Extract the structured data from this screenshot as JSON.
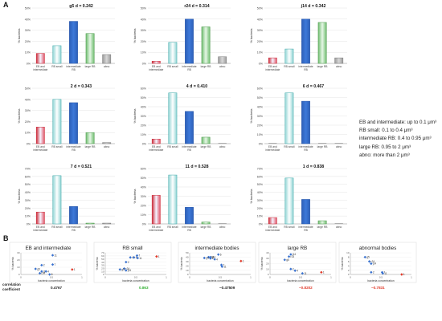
{
  "figure": {
    "panel_a_label": "A",
    "panel_b_label": "B",
    "legend_lines": [
      "EB and intermediate: up to 0.1 μm³",
      "RB small: 0.1 to 0.4 μm³",
      "intermediate RB: 0.4 to 0.95 μm³",
      "large RB: 0.95 to 2 μm³",
      "abno: more than 2 μm³"
    ],
    "correlation_label_1": "correlation",
    "correlation_label_2": "coefficient"
  },
  "colors": {
    "eb_fill": "#e05468",
    "eb_edge": "#cc2a38",
    "rbsmall_fill": "#cfeeee",
    "rbsmall_edge": "#3fa8a8",
    "interm_fill": "#3e79d9",
    "interm_edge": "#2a58a8",
    "large_fill": "#a8dca8",
    "large_edge": "#4c9a4c",
    "abno_fill": "#b8b8b8",
    "abno_edge": "#7a7a7a",
    "point_blue": "#3a72cf",
    "point_red": "#e03a2a",
    "corr_black": "#222222",
    "corr_green": "#35b035",
    "corr_red": "#e03a2a"
  },
  "chart_data": [
    {
      "type": "bar",
      "title": "g5 d = 0.242",
      "ylabel": "% bacteria",
      "ylim": [
        0,
        50
      ],
      "yticks": [
        "0%",
        "10%",
        "20%",
        "30%",
        "40%",
        "50%"
      ],
      "categories": [
        "EB and intermediate",
        "RB small",
        "intermediate RB",
        "large RB",
        "abno"
      ],
      "values": [
        9,
        16,
        38,
        27,
        8
      ]
    },
    {
      "type": "bar",
      "title": "r24 d = 0.314",
      "ylabel": "% bacteria",
      "ylim": [
        0,
        50
      ],
      "yticks": [
        "0%",
        "10%",
        "20%",
        "30%",
        "40%",
        "50%"
      ],
      "categories": [
        "EB and intermediate",
        "RB small",
        "intermediate RB",
        "large RB",
        "abno"
      ],
      "values": [
        2,
        19,
        40,
        33,
        6
      ]
    },
    {
      "type": "bar",
      "title": "j14 d = 0.342",
      "ylabel": "% bacteria",
      "ylim": [
        0,
        50
      ],
      "yticks": [
        "0%",
        "10%",
        "20%",
        "30%",
        "40%",
        "50%"
      ],
      "categories": [
        "EB and intermediate",
        "RB small",
        "intermediate RB",
        "large RB",
        "abno"
      ],
      "values": [
        5,
        13,
        40,
        37,
        5
      ]
    },
    {
      "type": "bar",
      "title": "2 d = 0.343",
      "ylabel": "% bacteria",
      "ylim": [
        0,
        50
      ],
      "yticks": [
        "0%",
        "10%",
        "20%",
        "30%",
        "40%",
        "50%"
      ],
      "categories": [
        "EB and intermediate",
        "RB small",
        "intermediate RB",
        "large RB",
        "abno"
      ],
      "values": [
        15,
        40,
        37,
        10,
        1
      ]
    },
    {
      "type": "bar",
      "title": "4 d = 0.410",
      "ylabel": "% bacteria",
      "ylim": [
        0,
        60
      ],
      "yticks": [
        "0%",
        "10%",
        "20%",
        "30%",
        "40%",
        "50%",
        "60%"
      ],
      "categories": [
        "EB and intermediate",
        "RB small",
        "intermediate RB",
        "large RB",
        "abno"
      ],
      "values": [
        5,
        55,
        35,
        7,
        0
      ]
    },
    {
      "type": "bar",
      "title": "6 d = 0.467",
      "ylabel": "% bacteria",
      "ylim": [
        0,
        60
      ],
      "yticks": [
        "0%",
        "10%",
        "20%",
        "30%",
        "40%",
        "50%",
        "60%"
      ],
      "categories": [
        "EB and intermediate",
        "RB small",
        "intermediate RB",
        "large RB",
        "abno"
      ],
      "values": [
        0,
        55,
        46,
        0,
        0
      ]
    },
    {
      "type": "bar",
      "title": "7 d = 0.521",
      "ylabel": "% bacteria",
      "ylim": [
        0,
        70
      ],
      "yticks": [
        "0%",
        "10%",
        "20%",
        "30%",
        "40%",
        "50%",
        "60%",
        "70%"
      ],
      "categories": [
        "EB and intermediate",
        "RB small",
        "intermediate RB",
        "large RB",
        "abno"
      ],
      "values": [
        15,
        61,
        22,
        1,
        1
      ]
    },
    {
      "type": "bar",
      "title": "11 d = 0.528",
      "ylabel": "% bacteria",
      "ylim": [
        0,
        60
      ],
      "yticks": [
        "0%",
        "10%",
        "20%",
        "30%",
        "40%",
        "50%",
        "60%"
      ],
      "categories": [
        "EB and intermediate",
        "RB small",
        "intermediate RB",
        "large RB",
        "abno"
      ],
      "values": [
        31,
        53,
        18,
        2,
        0
      ]
    },
    {
      "type": "bar",
      "title": "1 d = 0.838",
      "ylabel": "% bacteria",
      "ylim": [
        0,
        70
      ],
      "yticks": [
        "0%",
        "10%",
        "20%",
        "30%",
        "40%",
        "50%",
        "60%",
        "70%"
      ],
      "categories": [
        "EB and intermediate",
        "RB small",
        "intermediate RB",
        "large RB",
        "abno"
      ],
      "values": [
        8,
        58,
        31,
        4,
        0
      ]
    },
    {
      "type": "scatter",
      "title": "EB and intermediate",
      "xlabel": "bacteria concentration",
      "ylabel": "% bacteria",
      "xlim": [
        0,
        1
      ],
      "ylim": [
        0,
        35
      ],
      "xticks": [
        "0",
        "0.5",
        "1"
      ],
      "yticks": [
        "0",
        "10",
        "20",
        "30"
      ],
      "points": [
        {
          "label": "11",
          "x": 0.52,
          "y": 31,
          "color": "blue"
        },
        {
          "label": "2",
          "x": 0.34,
          "y": 15,
          "color": "blue"
        },
        {
          "label": "7",
          "x": 0.52,
          "y": 16,
          "color": "blue"
        },
        {
          "label": "g5",
          "x": 0.24,
          "y": 9,
          "color": "blue"
        },
        {
          "label": "j14",
          "x": 0.34,
          "y": 5,
          "color": "blue"
        },
        {
          "label": "4",
          "x": 0.41,
          "y": 5,
          "color": "blue"
        },
        {
          "label": "r24",
          "x": 0.31,
          "y": 2,
          "color": "blue"
        },
        {
          "label": "6",
          "x": 0.47,
          "y": 0,
          "color": "blue"
        },
        {
          "label": "1",
          "x": 0.84,
          "y": 8,
          "color": "red"
        }
      ],
      "correlation": "0.4767",
      "correlation_color": "black"
    },
    {
      "type": "scatter",
      "title": "RB small",
      "xlabel": "bacteria concentration",
      "ylabel": "% bacteria",
      "xlim": [
        0,
        1
      ],
      "ylim": [
        0,
        70
      ],
      "xticks": [
        "0",
        "0.5",
        "1"
      ],
      "yticks": [
        "0",
        "10",
        "20",
        "30",
        "40",
        "50",
        "60",
        "70"
      ],
      "points": [
        {
          "label": "7",
          "x": 0.52,
          "y": 61,
          "color": "blue"
        },
        {
          "label": "4",
          "x": 0.41,
          "y": 55,
          "color": "blue"
        },
        {
          "label": "6",
          "x": 0.47,
          "y": 55,
          "color": "blue"
        },
        {
          "label": "11",
          "x": 0.53,
          "y": 53,
          "color": "blue"
        },
        {
          "label": "2",
          "x": 0.34,
          "y": 40,
          "color": "blue"
        },
        {
          "label": "r24",
          "x": 0.31,
          "y": 19,
          "color": "blue"
        },
        {
          "label": "g5",
          "x": 0.24,
          "y": 16,
          "color": "blue"
        },
        {
          "label": "j14",
          "x": 0.34,
          "y": 13,
          "color": "blue"
        },
        {
          "label": "1",
          "x": 0.84,
          "y": 58,
          "color": "red"
        }
      ],
      "correlation": "0.863",
      "correlation_color": "green"
    },
    {
      "type": "scatter",
      "title": "intermediate bodies",
      "xlabel": "bacteria concentration",
      "ylabel": "% bacteria",
      "xlim": [
        0,
        1
      ],
      "ylim": [
        0,
        50
      ],
      "xticks": [
        "0",
        "0.5",
        "1"
      ],
      "yticks": [
        "0",
        "10",
        "20",
        "30",
        "40",
        "50"
      ],
      "points": [
        {
          "label": "6",
          "x": 0.47,
          "y": 46,
          "color": "blue"
        },
        {
          "label": "r24",
          "x": 0.31,
          "y": 40,
          "color": "blue"
        },
        {
          "label": "j14",
          "x": 0.34,
          "y": 40,
          "color": "blue"
        },
        {
          "label": "g5",
          "x": 0.24,
          "y": 38,
          "color": "blue"
        },
        {
          "label": "2",
          "x": 0.34,
          "y": 37,
          "color": "blue"
        },
        {
          "label": "4",
          "x": 0.41,
          "y": 35,
          "color": "blue"
        },
        {
          "label": "7",
          "x": 0.52,
          "y": 22,
          "color": "blue"
        },
        {
          "label": "11",
          "x": 0.53,
          "y": 18,
          "color": "blue"
        },
        {
          "label": "1",
          "x": 0.84,
          "y": 31,
          "color": "red"
        }
      ],
      "correlation": "−0.47509",
      "correlation_color": "black"
    },
    {
      "type": "scatter",
      "title": "large RB",
      "xlabel": "bacteria concentration",
      "ylabel": "% bacteria",
      "xlim": [
        0,
        1
      ],
      "ylim": [
        0,
        40
      ],
      "xticks": [
        "0",
        "0.5",
        "1"
      ],
      "yticks": [
        "0",
        "10",
        "20",
        "30",
        "40"
      ],
      "points": [
        {
          "label": "j14",
          "x": 0.34,
          "y": 37,
          "color": "blue"
        },
        {
          "label": "r24",
          "x": 0.31,
          "y": 33,
          "color": "blue"
        },
        {
          "label": "g5",
          "x": 0.24,
          "y": 27,
          "color": "blue"
        },
        {
          "label": "2",
          "x": 0.34,
          "y": 10,
          "color": "blue"
        },
        {
          "label": "4",
          "x": 0.41,
          "y": 7,
          "color": "blue"
        },
        {
          "label": "11",
          "x": 0.53,
          "y": 2,
          "color": "blue"
        },
        {
          "label": "1",
          "x": 0.84,
          "y": 4,
          "color": "red"
        }
      ],
      "correlation": "−0.8202",
      "correlation_color": "red"
    },
    {
      "type": "scatter",
      "title": "abnormal bodies",
      "xlabel": "bacteria concentration",
      "ylabel": "% bacteria",
      "xlim": [
        0,
        1
      ],
      "ylim": [
        0,
        10
      ],
      "xticks": [
        "0",
        "0.5",
        "1"
      ],
      "yticks": [
        "0",
        "2",
        "4",
        "6",
        "8",
        "10"
      ],
      "points": [
        {
          "label": "g5",
          "x": 0.24,
          "y": 8,
          "color": "blue"
        },
        {
          "label": "r24",
          "x": 0.31,
          "y": 6,
          "color": "blue"
        },
        {
          "label": "j14",
          "x": 0.34,
          "y": 5,
          "color": "blue"
        },
        {
          "label": "2",
          "x": 0.34,
          "y": 1,
          "color": "blue"
        },
        {
          "label": "7",
          "x": 0.52,
          "y": 1,
          "color": "blue"
        },
        {
          "label": "11",
          "x": 0.53,
          "y": 0.5,
          "color": "blue"
        },
        {
          "label": "1",
          "x": 0.84,
          "y": 0,
          "color": "red"
        }
      ],
      "correlation": "−0.7831",
      "correlation_color": "red"
    }
  ]
}
